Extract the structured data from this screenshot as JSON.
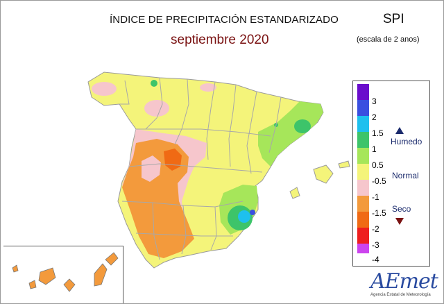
{
  "map": {
    "title": "ÍNDICE DE PRECIPITACIÓN ESTANDARIZADO",
    "subtitle": "septiembre 2020",
    "index_label": "SPI",
    "scale_note": "(escala de 2 anos)"
  },
  "legend": {
    "ticks": [
      "3",
      "2",
      "1.5",
      "1",
      "0.5",
      "-0.5",
      "-1",
      "-1.5",
      "-2",
      "-3",
      "-4"
    ],
    "colors": [
      "#6a0dcc",
      "#3a4fe0",
      "#1ec0ee",
      "#3dc46a",
      "#a6e65a",
      "#f4f47a",
      "#f6c6cc",
      "#f39a3c",
      "#f06a14",
      "#ee1e1e",
      "#cc44ee"
    ],
    "wet_label": "Humedo",
    "normal_label": "Normal",
    "dry_label": "Seco"
  },
  "logo": {
    "name": "AEmet",
    "caption": "Agencia Estatal de Meteorología"
  }
}
